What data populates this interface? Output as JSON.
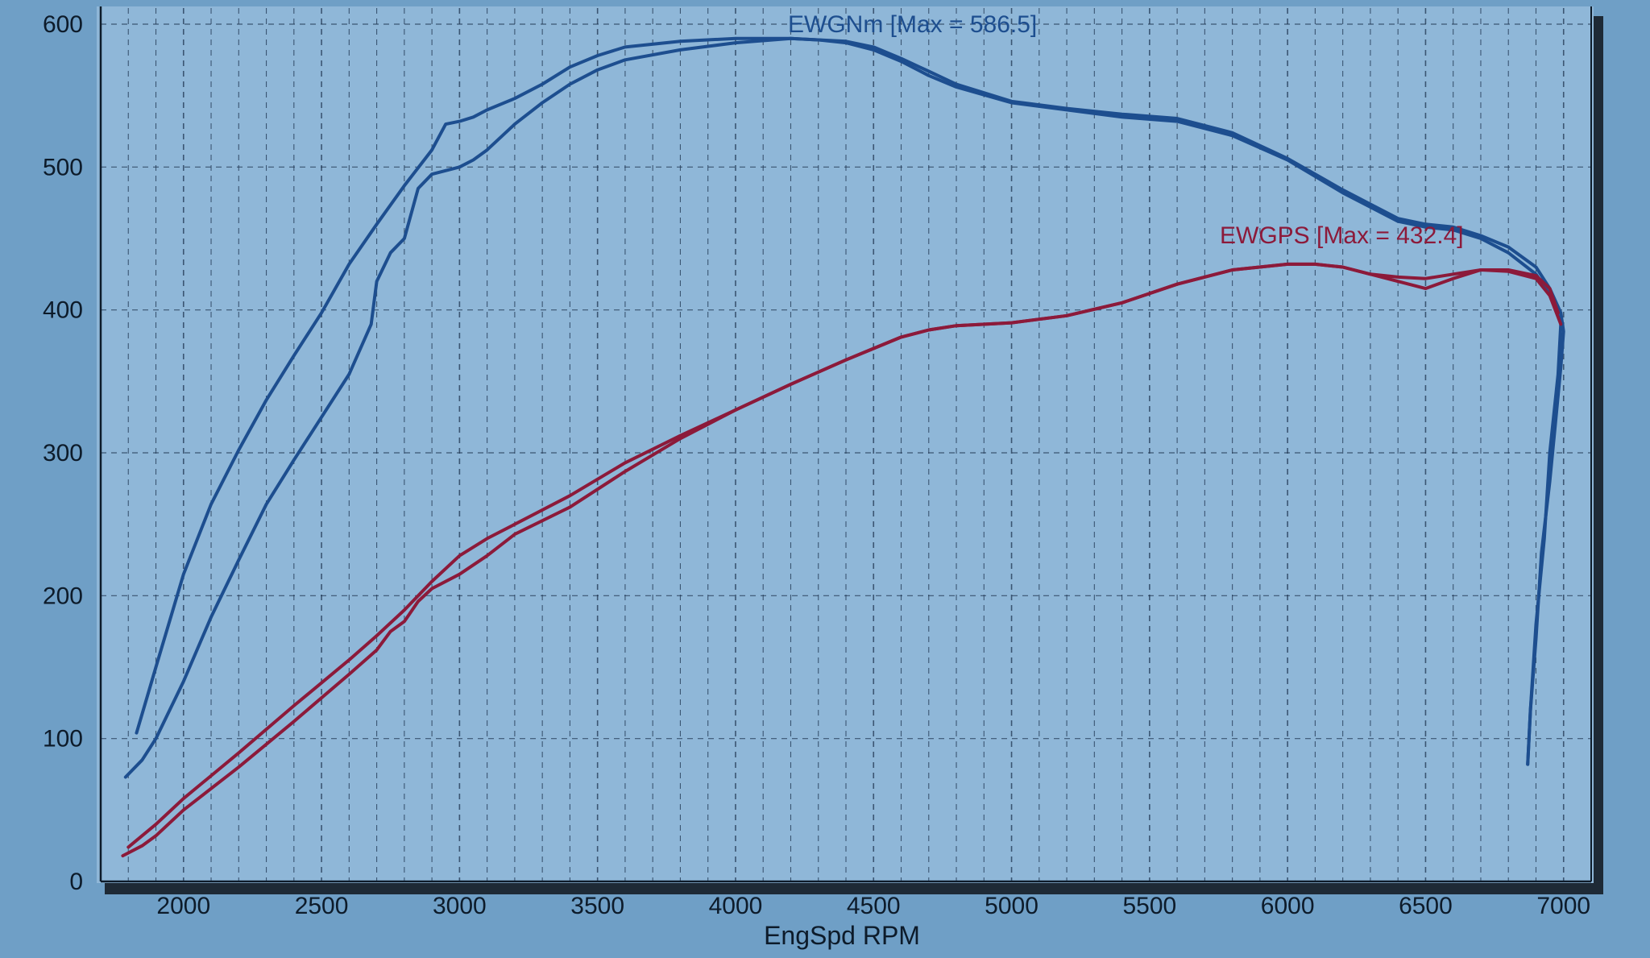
{
  "chart_data": {
    "type": "line",
    "title": "",
    "xlabel": "EngSpd RPM",
    "ylabel": "",
    "xlim": [
      1700,
      7100
    ],
    "ylim": [
      0,
      600
    ],
    "x_ticks": [
      2000,
      2500,
      3000,
      3500,
      4000,
      4500,
      5000,
      5500,
      6000,
      6500,
      7000
    ],
    "y_ticks": [
      0,
      100,
      200,
      300,
      400,
      500,
      600
    ],
    "grid": true,
    "colors": {
      "torque": "#1d4e8f",
      "power": "#8c1a3a",
      "panel": "#8fb7d8",
      "background": "#6f9fc6"
    },
    "series": [
      {
        "name": "EWGNm",
        "label": "EWGNm  [Max = 586.5]",
        "color": "#1d4e8f",
        "runs": [
          {
            "x": [
              1830,
              1900,
              2000,
              2100,
              2200,
              2300,
              2400,
              2500,
              2600,
              2700,
              2800,
              2900,
              2950,
              3000,
              3050,
              3100,
              3200,
              3300,
              3400,
              3500,
              3600,
              3800,
              4000,
              4200,
              4300,
              4400,
              4500,
              4600,
              4700,
              4800,
              5000,
              5200,
              5400,
              5600,
              5800,
              6000,
              6200,
              6400,
              6500,
              6600,
              6700,
              6800,
              6900,
              6960,
              6990,
              6980,
              6950,
              6930,
              6900,
              6880,
              6870
            ],
            "y": [
              104,
              150,
              215,
              264,
              302,
              337,
              368,
              398,
              432,
              460,
              487,
              512,
              530,
              532,
              535,
              540,
              548,
              558,
              570,
              578,
              584,
              588,
              590,
              590,
              589,
              587,
              582,
              574,
              564,
              556,
              545,
              540,
              535,
              532,
              522,
              505,
              482,
              462,
              458,
              456,
              450,
              440,
              425,
              408,
              390,
              355,
              300,
              240,
              180,
              120,
              82
            ]
          },
          {
            "x": [
              1790,
              1850,
              1900,
              2000,
              2100,
              2200,
              2300,
              2400,
              2500,
              2600,
              2680,
              2700,
              2750,
              2800,
              2850,
              2900,
              3000,
              3050,
              3100,
              3200,
              3300,
              3400,
              3500,
              3600,
              3800,
              4000,
              4200,
              4400,
              4500,
              4600,
              4700,
              4800,
              5000,
              5200,
              5400,
              5600,
              5800,
              6000,
              6200,
              6400,
              6500,
              6600,
              6700,
              6800,
              6900,
              6950,
              6990,
              7000,
              6990,
              6970,
              6950,
              6920,
              6900,
              6880,
              6870
            ],
            "y": [
              73,
              85,
              100,
              140,
              185,
              225,
              264,
              295,
              325,
              355,
              390,
              420,
              440,
              450,
              485,
              495,
              500,
              505,
              512,
              530,
              545,
              558,
              568,
              575,
              582,
              587,
              590,
              588,
              584,
              576,
              567,
              558,
              546,
              541,
              537,
              534,
              524,
              506,
              484,
              464,
              460,
              458,
              452,
              444,
              430,
              415,
              398,
              385,
              360,
              320,
              280,
              230,
              170,
              120,
              82
            ]
          }
        ]
      },
      {
        "name": "EWGPS",
        "label": "EWGPS  [Max = 432.4]",
        "color": "#8c1a3a",
        "runs": [
          {
            "x": [
              1800,
              1900,
              2000,
              2200,
              2400,
              2600,
              2700,
              2800,
              2900,
              3000,
              3100,
              3200,
              3400,
              3600,
              3800,
              4000,
              4200,
              4400,
              4500,
              4600,
              4700,
              4800,
              5000,
              5200,
              5400,
              5600,
              5800,
              6000,
              6100,
              6200,
              6300,
              6400,
              6500,
              6600,
              6700,
              6800,
              6900,
              6950,
              6980
            ],
            "y": [
              24,
              40,
              58,
              90,
              123,
              155,
              172,
              190,
              210,
              228,
              240,
              250,
              270,
              293,
              312,
              330,
              348,
              365,
              373,
              381,
              386,
              389,
              391,
              396,
              405,
              418,
              428,
              432,
              432,
              430,
              425,
              423,
              422,
              425,
              428,
              428,
              424,
              415,
              398
            ]
          },
          {
            "x": [
              1780,
              1850,
              1900,
              2000,
              2200,
              2400,
              2600,
              2700,
              2750,
              2800,
              2850,
              2900,
              3000,
              3100,
              3200,
              3400,
              3600,
              3800,
              4000,
              4200,
              4400,
              4500,
              4600,
              4700,
              4800,
              5000,
              5200,
              5400,
              5600,
              5800,
              6000,
              6100,
              6200,
              6300,
              6400,
              6500,
              6600,
              6700,
              6800,
              6900,
              6950,
              6990
            ],
            "y": [
              18,
              25,
              32,
              50,
              80,
              112,
              145,
              162,
              175,
              182,
              196,
              205,
              215,
              228,
              243,
              262,
              287,
              310,
              330,
              348,
              365,
              373,
              381,
              386,
              389,
              391,
              396,
              405,
              418,
              428,
              432,
              432,
              430,
              425,
              420,
              415,
              422,
              428,
              427,
              422,
              410,
              390
            ]
          }
        ]
      }
    ]
  }
}
